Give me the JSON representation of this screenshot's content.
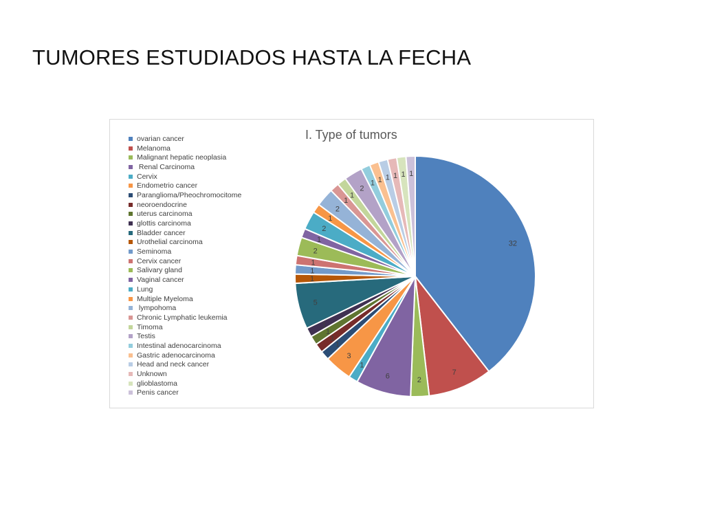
{
  "slide": {
    "title": "TUMORES ESTUDIADOS HASTA LA FECHA"
  },
  "chart_data": {
    "type": "pie",
    "title": "I. Type of tumors",
    "legend_position": "left",
    "slices": [
      {
        "label": "ovarian cancer",
        "value": 32,
        "color": "#4f81bd"
      },
      {
        "label": "Melanoma",
        "value": 7,
        "color": "#c0504d"
      },
      {
        "label": "Malignant hepatic neoplasia",
        "value": 2,
        "color": "#9bbb59"
      },
      {
        "label": " Renal Carcinoma",
        "value": 6,
        "color": "#8064a2"
      },
      {
        "label": "Cervix",
        "value": 1,
        "color": "#4bacc6"
      },
      {
        "label": "Endometrio cancer",
        "value": 3,
        "color": "#f79646"
      },
      {
        "label": "Paranglioma/Pheochromocitome",
        "value": 1,
        "color": "#2c4d75"
      },
      {
        "label": "neoroendocrine",
        "value": 1,
        "color": "#772c2a"
      },
      {
        "label": "uterus carcinoma",
        "value": 1,
        "color": "#5f7530"
      },
      {
        "label": "glottis carcinoma",
        "value": 1,
        "color": "#403152"
      },
      {
        "label": "Bladder cancer",
        "value": 5,
        "color": "#276a7c"
      },
      {
        "label": "Urothelial carcinoma",
        "value": 1,
        "color": "#b65708"
      },
      {
        "label": "Seminoma",
        "value": 1,
        "color": "#729aca"
      },
      {
        "label": "Cervix cancer",
        "value": 1,
        "color": "#cd7371"
      },
      {
        "label": "Salivary gland",
        "value": 2,
        "color": "#9cbb58"
      },
      {
        "label": "Vaginal cancer",
        "value": 1,
        "color": "#8064a2"
      },
      {
        "label": "Lung",
        "value": 2,
        "color": "#4bacc6"
      },
      {
        "label": "Multiple Myeloma",
        "value": 1,
        "color": "#f79646"
      },
      {
        "label": " lympohoma",
        "value": 2,
        "color": "#95b3d7"
      },
      {
        "label": "Chronic Lymphatic leukemia",
        "value": 1,
        "color": "#d99694"
      },
      {
        "label": "Timoma",
        "value": 1,
        "color": "#c3d69b"
      },
      {
        "label": "Testis",
        "value": 2,
        "color": "#b3a2c7"
      },
      {
        "label": "Intestinal adenocarcinoma",
        "value": 1,
        "color": "#93cddd"
      },
      {
        "label": "Gastric adenocarcinoma",
        "value": 1,
        "color": "#fac090"
      },
      {
        "label": "Head and neck cancer",
        "value": 1,
        "color": "#b9cde5"
      },
      {
        "label": "Unknown",
        "value": 1,
        "color": "#e6b9b8"
      },
      {
        "label": "glioblastoma",
        "value": 1,
        "color": "#d7e4bd"
      },
      {
        "label": "Penis cancer",
        "value": 1,
        "color": "#ccc1da"
      }
    ]
  }
}
